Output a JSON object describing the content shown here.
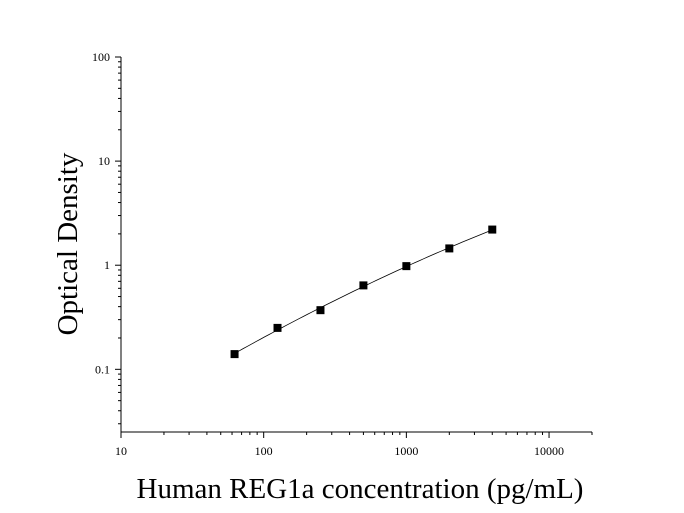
{
  "chart_data": {
    "type": "scatter",
    "title": "",
    "xlabel": "Human REG1a concentration (pg/mL)",
    "ylabel": "Optical Density",
    "x_scale": "log",
    "y_scale": "log",
    "xlim": [
      10,
      20000
    ],
    "ylim": [
      0.025,
      100
    ],
    "x_ticks": [
      10,
      100,
      1000,
      10000
    ],
    "x_tick_labels": [
      "10",
      "100",
      "1000",
      "10000"
    ],
    "y_ticks": [
      0.1,
      1,
      10,
      100
    ],
    "y_tick_labels": [
      "0.1",
      "1",
      "10",
      "100"
    ],
    "grid": false,
    "legend": "none",
    "series": [
      {
        "marker": "square",
        "color": "#000000",
        "x": [
          62.5,
          125,
          250,
          500,
          1000,
          2000,
          4000
        ],
        "y": [
          0.14,
          0.25,
          0.37,
          0.64,
          0.98,
          1.45,
          2.2
        ]
      }
    ],
    "fit_curve": true
  }
}
